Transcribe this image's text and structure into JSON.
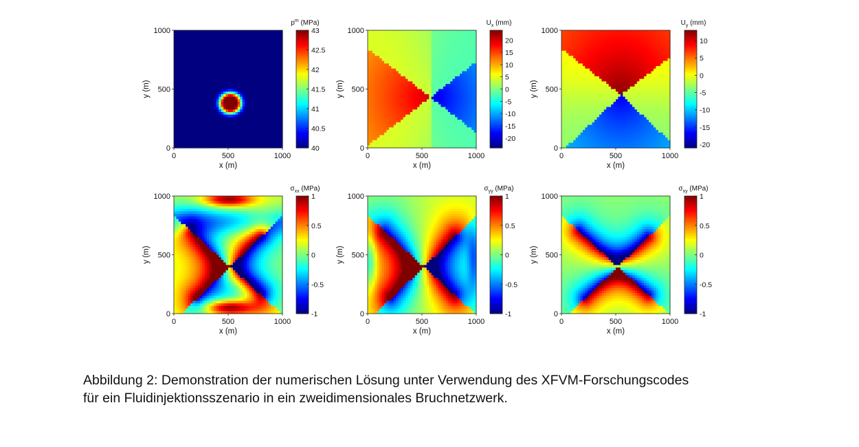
{
  "chart_data": [
    {
      "type": "heatmap",
      "field": "pressure",
      "cb_main": "p",
      "cb_sup": "m",
      "cb_sub": "",
      "cb_unit": "(MPa)",
      "xlabel": "x (m)",
      "ylabel": "y (m)",
      "xlim": [
        0,
        1000
      ],
      "ylim": [
        0,
        1000
      ],
      "xticks": [
        "0",
        "500",
        "1000"
      ],
      "yticks": [
        "0",
        "500",
        "1000"
      ],
      "clim": [
        40,
        43
      ],
      "cbticks": [
        {
          "v": 43,
          "t": "43"
        },
        {
          "v": 42.5,
          "t": "42.5"
        },
        {
          "v": 42,
          "t": "42"
        },
        {
          "v": 41.5,
          "t": "41.5"
        },
        {
          "v": 41,
          "t": "41"
        },
        {
          "v": 40.5,
          "t": "40.5"
        },
        {
          "v": 40,
          "t": "40"
        }
      ]
    },
    {
      "type": "heatmap",
      "field": "ux",
      "cb_main": "U",
      "cb_sup": "",
      "cb_sub": "x",
      "cb_unit": "(mm)",
      "xlabel": "x (m)",
      "ylabel": "y (m)",
      "xlim": [
        0,
        1000
      ],
      "ylim": [
        0,
        1000
      ],
      "xticks": [
        "0",
        "500",
        "1000"
      ],
      "yticks": [
        "0",
        "500",
        "1000"
      ],
      "clim": [
        -24,
        24
      ],
      "cbticks": [
        {
          "v": 20,
          "t": "20"
        },
        {
          "v": 15,
          "t": "15"
        },
        {
          "v": 10,
          "t": "10"
        },
        {
          "v": 5,
          "t": "5"
        },
        {
          "v": 0,
          "t": "0"
        },
        {
          "v": -5,
          "t": "-5"
        },
        {
          "v": -10,
          "t": "-10"
        },
        {
          "v": -15,
          "t": "-15"
        },
        {
          "v": -20,
          "t": "-20"
        }
      ]
    },
    {
      "type": "heatmap",
      "field": "uy",
      "cb_main": "U",
      "cb_sup": "",
      "cb_sub": "y",
      "cb_unit": "(mm)",
      "xlabel": "x (m)",
      "ylabel": "y (m)",
      "xlim": [
        0,
        1000
      ],
      "ylim": [
        0,
        1000
      ],
      "xticks": [
        "0",
        "500",
        "1000"
      ],
      "yticks": [
        "0",
        "500",
        "1000"
      ],
      "clim": [
        -21,
        13
      ],
      "cbticks": [
        {
          "v": 10,
          "t": "10"
        },
        {
          "v": 5,
          "t": "5"
        },
        {
          "v": 0,
          "t": "0"
        },
        {
          "v": -5,
          "t": "-5"
        },
        {
          "v": -10,
          "t": "-10"
        },
        {
          "v": -15,
          "t": "-15"
        },
        {
          "v": -20,
          "t": "-20"
        }
      ]
    },
    {
      "type": "heatmap",
      "field": "sxx",
      "cb_main": "σ",
      "cb_sup": "",
      "cb_sub": "xx",
      "cb_unit": "(MPa)",
      "xlabel": "x (m)",
      "ylabel": "y (m)",
      "xlim": [
        0,
        1000
      ],
      "ylim": [
        0,
        1000
      ],
      "xticks": [
        "0",
        "500",
        "1000"
      ],
      "yticks": [
        "0",
        "500",
        "1000"
      ],
      "clim": [
        -1,
        1
      ],
      "cbticks": [
        {
          "v": 1,
          "t": "1"
        },
        {
          "v": 0.5,
          "t": "0.5"
        },
        {
          "v": 0,
          "t": "0"
        },
        {
          "v": -0.5,
          "t": "-0.5"
        },
        {
          "v": -1,
          "t": "-1"
        }
      ]
    },
    {
      "type": "heatmap",
      "field": "syy",
      "cb_main": "σ",
      "cb_sup": "",
      "cb_sub": "yy",
      "cb_unit": "(MPa)",
      "xlabel": "x (m)",
      "ylabel": "y (m)",
      "xlim": [
        0,
        1000
      ],
      "ylim": [
        0,
        1000
      ],
      "xticks": [
        "0",
        "500",
        "1000"
      ],
      "yticks": [
        "0",
        "500",
        "1000"
      ],
      "clim": [
        -1,
        1
      ],
      "cbticks": [
        {
          "v": 1,
          "t": "1"
        },
        {
          "v": 0.5,
          "t": "0.5"
        },
        {
          "v": 0,
          "t": "0"
        },
        {
          "v": -0.5,
          "t": "-0.5"
        },
        {
          "v": -1,
          "t": "-1"
        }
      ]
    },
    {
      "type": "heatmap",
      "field": "sxy",
      "cb_main": "σ",
      "cb_sup": "",
      "cb_sub": "xy",
      "cb_unit": "(MPa)",
      "xlabel": "x (m)",
      "ylabel": "y (m)",
      "xlim": [
        0,
        1000
      ],
      "ylim": [
        0,
        1000
      ],
      "xticks": [
        "0",
        "500",
        "1000"
      ],
      "yticks": [
        "0",
        "500",
        "1000"
      ],
      "clim": [
        -1,
        1
      ],
      "cbticks": [
        {
          "v": 1,
          "t": "1"
        },
        {
          "v": 0.5,
          "t": "0.5"
        },
        {
          "v": 0,
          "t": "0"
        },
        {
          "v": -0.5,
          "t": "-0.5"
        },
        {
          "v": -1,
          "t": "-1"
        }
      ]
    }
  ],
  "caption": {
    "line1": "Abbildung 2: Demonstration der numerischen Lösung unter Verwendung des XFVM-Forschungscodes",
    "line2": "für ein Fluidinjektionsszenario in ein zweidimensionales Bruchnetzwerk."
  }
}
